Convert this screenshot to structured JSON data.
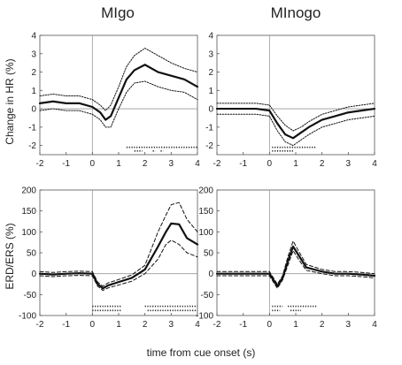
{
  "chart_data": [
    {
      "type": "line",
      "title": "MIgo",
      "xlabel": "",
      "ylabel": "Change in HR (%)",
      "xlim": [
        -2,
        4
      ],
      "ylim": [
        -2.5,
        4
      ],
      "xticks": [
        -2,
        -1,
        0,
        1,
        2,
        3,
        4
      ],
      "yticks": [
        -2,
        -1,
        0,
        1,
        2,
        3,
        4
      ],
      "x": [
        -2,
        -1.5,
        -1,
        -0.5,
        0,
        0.3,
        0.5,
        0.7,
        1,
        1.3,
        1.6,
        2,
        2.5,
        3,
        3.5,
        4
      ],
      "series": [
        {
          "style": "solid",
          "values": [
            0.3,
            0.4,
            0.3,
            0.3,
            0.1,
            -0.2,
            -0.6,
            -0.4,
            0.6,
            1.6,
            2.1,
            2.4,
            2.0,
            1.8,
            1.6,
            1.2
          ]
        },
        {
          "style": "dotted",
          "values": [
            0.7,
            0.8,
            0.7,
            0.7,
            0.5,
            0.2,
            -0.1,
            0.2,
            1.2,
            2.3,
            2.9,
            3.3,
            2.9,
            2.5,
            2.2,
            2.0
          ]
        },
        {
          "style": "dotted",
          "values": [
            -0.1,
            0.0,
            -0.1,
            -0.1,
            -0.3,
            -0.6,
            -1.0,
            -1.0,
            0.0,
            0.9,
            1.4,
            1.5,
            1.2,
            1.0,
            0.9,
            0.5
          ]
        }
      ],
      "sig_rows": [
        {
          "y": -2.1,
          "ranges": [
            [
              1.3,
              4.0
            ]
          ]
        },
        {
          "y": -2.3,
          "ranges": [
            [
              1.6,
              1.9
            ],
            [
              2.3,
              2.4
            ],
            [
              2.6,
              2.7
            ]
          ]
        }
      ]
    },
    {
      "type": "line",
      "title": "MInogo",
      "xlabel": "",
      "ylabel": "",
      "xlim": [
        -2,
        4
      ],
      "ylim": [
        -2.5,
        4
      ],
      "xticks": [
        -2,
        -1,
        0,
        1,
        2,
        3,
        4
      ],
      "yticks": [
        -2,
        -1,
        0,
        1,
        2,
        3,
        4
      ],
      "x": [
        -2,
        -1.5,
        -1,
        -0.5,
        0,
        0.3,
        0.6,
        0.9,
        1.2,
        1.5,
        2,
        2.5,
        3,
        3.5,
        4
      ],
      "series": [
        {
          "style": "solid",
          "values": [
            0.0,
            0.0,
            0.0,
            0.0,
            -0.1,
            -0.8,
            -1.4,
            -1.6,
            -1.3,
            -1.0,
            -0.6,
            -0.4,
            -0.2,
            -0.1,
            0.0
          ]
        },
        {
          "style": "dotted",
          "values": [
            0.3,
            0.3,
            0.3,
            0.3,
            0.2,
            -0.4,
            -0.9,
            -1.2,
            -1.0,
            -0.7,
            -0.3,
            -0.1,
            0.1,
            0.2,
            0.3
          ]
        },
        {
          "style": "dotted",
          "values": [
            -0.3,
            -0.3,
            -0.3,
            -0.3,
            -0.4,
            -1.2,
            -1.8,
            -2.0,
            -1.7,
            -1.4,
            -1.0,
            -0.8,
            -0.6,
            -0.5,
            -0.4
          ]
        }
      ],
      "sig_rows": [
        {
          "y": -2.1,
          "ranges": [
            [
              0.1,
              1.8
            ]
          ]
        },
        {
          "y": -2.3,
          "ranges": [
            [
              0.1,
              0.9
            ]
          ]
        }
      ]
    },
    {
      "type": "line",
      "title": "",
      "xlabel": "time from cue onset (s)",
      "ylabel": "ERD/ERS (%)",
      "xlim": [
        -2,
        4
      ],
      "ylim": [
        -100,
        200
      ],
      "xticks": [
        -2,
        -1,
        0,
        1,
        2,
        3,
        4
      ],
      "yticks": [
        -100,
        -50,
        0,
        50,
        100,
        150,
        200
      ],
      "x": [
        -2,
        -1.5,
        -1,
        -0.5,
        0,
        0.2,
        0.4,
        0.6,
        1,
        1.5,
        2,
        2.5,
        2.8,
        3.0,
        3.3,
        3.6,
        4
      ],
      "series": [
        {
          "style": "solid",
          "values": [
            0,
            -2,
            0,
            1,
            0,
            -25,
            -35,
            -28,
            -20,
            -10,
            10,
            65,
            100,
            120,
            118,
            85,
            70
          ]
        },
        {
          "style": "dashed",
          "values": [
            5,
            3,
            5,
            6,
            5,
            -20,
            -30,
            -22,
            -14,
            -3,
            20,
            100,
            140,
            165,
            170,
            130,
            100
          ]
        },
        {
          "style": "dashed",
          "values": [
            -5,
            -7,
            -5,
            -4,
            -5,
            -30,
            -40,
            -34,
            -27,
            -18,
            0,
            35,
            70,
            80,
            70,
            50,
            40
          ]
        }
      ],
      "sig_rows": [
        {
          "y": -78,
          "ranges": [
            [
              0.0,
              1.1
            ],
            [
              2.0,
              4.0
            ]
          ]
        },
        {
          "y": -88,
          "ranges": [
            [
              0.0,
              1.1
            ],
            [
              2.1,
              4.0
            ]
          ]
        }
      ]
    },
    {
      "type": "line",
      "title": "",
      "xlabel": "",
      "ylabel": "",
      "xlim": [
        -2,
        4
      ],
      "ylim": [
        -100,
        200
      ],
      "xticks": [
        -2,
        -1,
        0,
        1,
        2,
        3,
        4
      ],
      "yticks": [
        -100,
        -50,
        0,
        50,
        100,
        150,
        200
      ],
      "x": [
        -2,
        -1.5,
        -1,
        -0.5,
        0,
        0.3,
        0.5,
        0.7,
        0.9,
        1.1,
        1.4,
        2,
        2.5,
        3,
        3.5,
        4
      ],
      "series": [
        {
          "style": "solid",
          "values": [
            0,
            0,
            0,
            0,
            0,
            -30,
            -10,
            30,
            65,
            45,
            15,
            5,
            0,
            0,
            -2,
            -5
          ]
        },
        {
          "style": "dashed",
          "values": [
            5,
            5,
            5,
            5,
            5,
            -25,
            -5,
            40,
            78,
            55,
            22,
            10,
            5,
            5,
            3,
            0
          ]
        },
        {
          "style": "dashed",
          "values": [
            -5,
            -5,
            -5,
            -5,
            -5,
            -35,
            -15,
            20,
            55,
            35,
            8,
            0,
            -5,
            -5,
            -7,
            -10
          ]
        }
      ],
      "sig_rows": [
        {
          "y": -78,
          "ranges": [
            [
              0.1,
              0.5
            ],
            [
              0.7,
              1.8
            ]
          ]
        },
        {
          "y": -88,
          "ranges": [
            [
              0.1,
              0.4
            ],
            [
              0.8,
              1.2
            ]
          ]
        }
      ]
    }
  ]
}
